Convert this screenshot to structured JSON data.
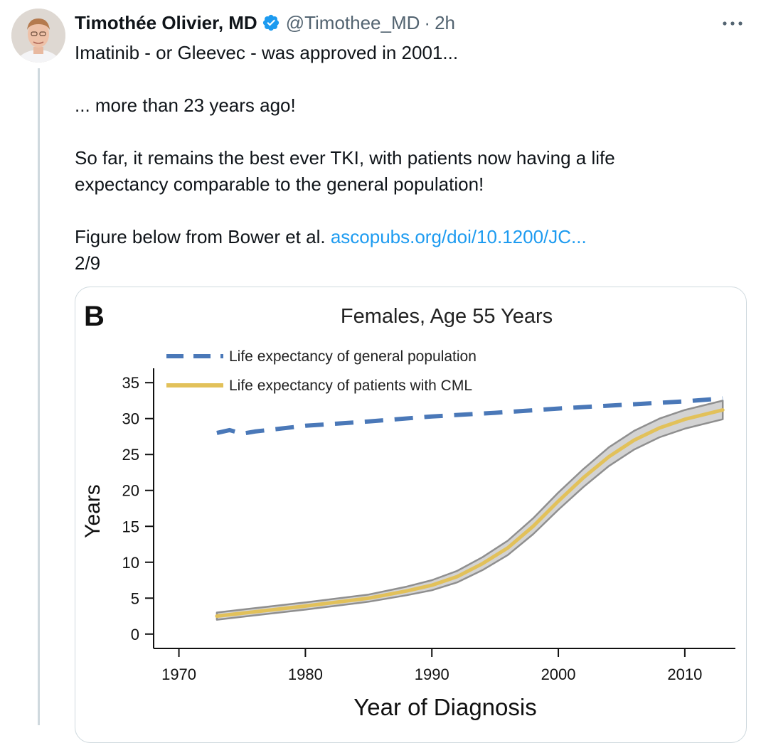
{
  "tweet": {
    "author_name": "Timothée Olivier, MD",
    "handle": "@Timothee_MD",
    "separator": "·",
    "time": "2h",
    "avatar_icon": "profile-photo",
    "verified_icon": "verified-badge-icon",
    "more_icon": "more-horizontal-icon",
    "colors": {
      "link": "#1d9bf0",
      "verified": "#1d9bf0",
      "secondary_text": "#536471"
    },
    "lines": {
      "line1": "Imatinib - or Gleevec - was approved in 2001...",
      "line2": "... more than 23 years ago!",
      "line3a": "So far, it remains the best ever TKI, with patients now having a life",
      "line3b": "expectancy comparable to the general population!",
      "line4_text": "Figure below from Bower et al.",
      "line4_link": "ascopubs.org/doi/10.1200/JC...",
      "line5": "2/9"
    }
  },
  "chart_data": {
    "type": "line",
    "panel_label": "B",
    "title": "Females, Age 55 Years",
    "xlabel": "Year of Diagnosis",
    "ylabel": "Years",
    "xlim": [
      1968,
      2014
    ],
    "ylim": [
      -2,
      37
    ],
    "xticks": [
      1970,
      1980,
      1990,
      2000,
      2010
    ],
    "yticks": [
      0,
      5,
      10,
      15,
      20,
      25,
      30,
      35
    ],
    "grid": false,
    "legend_position": "top-left",
    "series": [
      {
        "name": "Life expectancy of general population",
        "style": "dashed",
        "color": "#4a78b8",
        "x": [
          1973,
          1974,
          1975,
          1976,
          1978,
          1980,
          1985,
          1990,
          1995,
          2000,
          2005,
          2010,
          2013
        ],
        "y": [
          28.0,
          28.4,
          27.9,
          28.2,
          28.6,
          29.0,
          29.6,
          30.3,
          30.8,
          31.4,
          31.9,
          32.4,
          32.8
        ]
      },
      {
        "name": "Life expectancy of patients with CML",
        "style": "solid",
        "color": "#e2c15a",
        "band_color": "#d3d3d3",
        "x": [
          1973,
          1975,
          1980,
          1985,
          1988,
          1990,
          1992,
          1994,
          1996,
          1998,
          2000,
          2002,
          2004,
          2006,
          2008,
          2010,
          2013
        ],
        "y": [
          2.5,
          2.9,
          3.9,
          5.0,
          6.0,
          6.8,
          8.0,
          9.8,
          12.0,
          15.0,
          18.5,
          21.8,
          24.7,
          27.0,
          28.7,
          29.9,
          31.2
        ],
        "lower": [
          2.0,
          2.4,
          3.4,
          4.5,
          5.4,
          6.1,
          7.2,
          8.9,
          11.0,
          13.9,
          17.3,
          20.5,
          23.4,
          25.7,
          27.4,
          28.6,
          29.9
        ],
        "upper": [
          3.0,
          3.4,
          4.4,
          5.5,
          6.6,
          7.5,
          8.8,
          10.7,
          13.0,
          16.1,
          19.7,
          23.0,
          26.0,
          28.3,
          30.0,
          31.2,
          32.5
        ]
      }
    ]
  }
}
